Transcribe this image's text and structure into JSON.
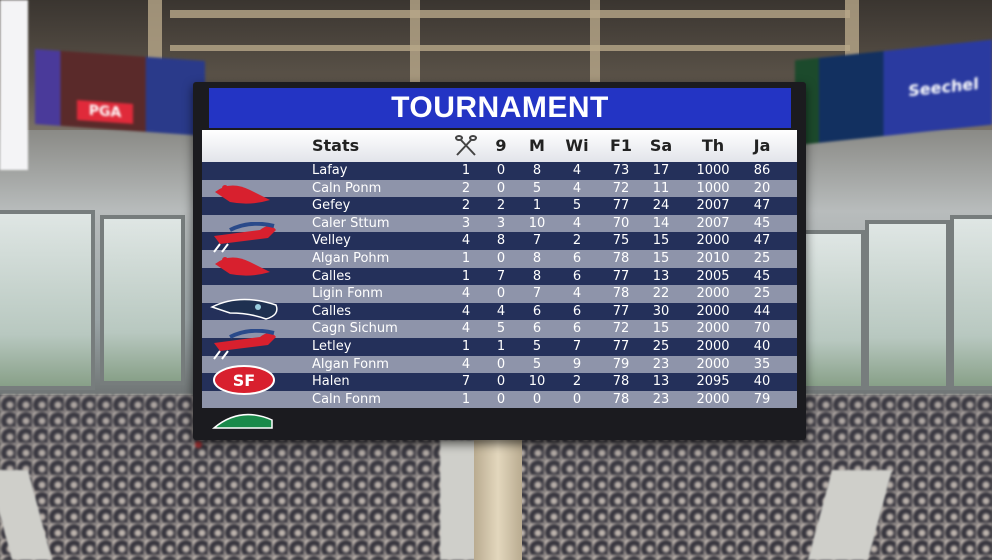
{
  "scoreboard": {
    "title": "TOURNAMENT",
    "header": {
      "name": "Stats",
      "icon": "crossed-sticks-icon",
      "columns": [
        "9",
        "M",
        "Wi",
        "F1",
        "Sa",
        "Th",
        "Ja"
      ]
    },
    "rows": [
      {
        "name": "Lafay",
        "values": [
          "1",
          "0",
          "8",
          "4",
          "73",
          "17",
          "1000",
          "86"
        ]
      },
      {
        "name": "Caln Ponm",
        "values": [
          "2",
          "0",
          "5",
          "4",
          "72",
          "11",
          "1000",
          "20"
        ]
      },
      {
        "name": "Gefey",
        "values": [
          "2",
          "2",
          "1",
          "5",
          "77",
          "24",
          "2007",
          "47"
        ]
      },
      {
        "name": "Caler Sttum",
        "values": [
          "3",
          "3",
          "10",
          "4",
          "70",
          "14",
          "2007",
          "45"
        ]
      },
      {
        "name": "Velley",
        "values": [
          "4",
          "8",
          "7",
          "2",
          "75",
          "15",
          "2000",
          "47"
        ]
      },
      {
        "name": "Algan Pohm",
        "values": [
          "1",
          "0",
          "8",
          "6",
          "78",
          "15",
          "2010",
          "25"
        ]
      },
      {
        "name": "Calles",
        "values": [
          "1",
          "7",
          "8",
          "6",
          "77",
          "13",
          "2005",
          "45"
        ]
      },
      {
        "name": "Ligin Fonm",
        "values": [
          "4",
          "0",
          "7",
          "4",
          "78",
          "22",
          "2000",
          "25"
        ]
      },
      {
        "name": "Calles",
        "values": [
          "4",
          "4",
          "6",
          "6",
          "77",
          "30",
          "2000",
          "44"
        ]
      },
      {
        "name": "Cagn Sichum",
        "values": [
          "4",
          "5",
          "6",
          "6",
          "72",
          "15",
          "2000",
          "70"
        ]
      },
      {
        "name": "Letley",
        "values": [
          "1",
          "1",
          "5",
          "7",
          "77",
          "25",
          "2000",
          "40"
        ]
      },
      {
        "name": "Algan Fonm",
        "values": [
          "4",
          "0",
          "5",
          "9",
          "79",
          "23",
          "2000",
          "35"
        ]
      },
      {
        "name": "Halen",
        "values": [
          "7",
          "0",
          "10",
          "2",
          "78",
          "13",
          "2095",
          "40"
        ]
      },
      {
        "name": "Caln Fonm",
        "values": [
          "1",
          "0",
          "0",
          "0",
          "78",
          "23",
          "2000",
          "79"
        ]
      }
    ],
    "logos": [
      "red-bird-logo",
      "blue-red-horse-logo",
      "red-bird-logo",
      "seahawk-logo",
      "blue-red-horse-logo",
      "49ers-oval-logo",
      "green-eagle-logo"
    ]
  },
  "banners": {
    "left": "PGA",
    "right": "Seechel"
  },
  "colors": {
    "title_bar": "#2334c4",
    "row_dark": "#24305a",
    "row_light": "#8e94aa"
  }
}
